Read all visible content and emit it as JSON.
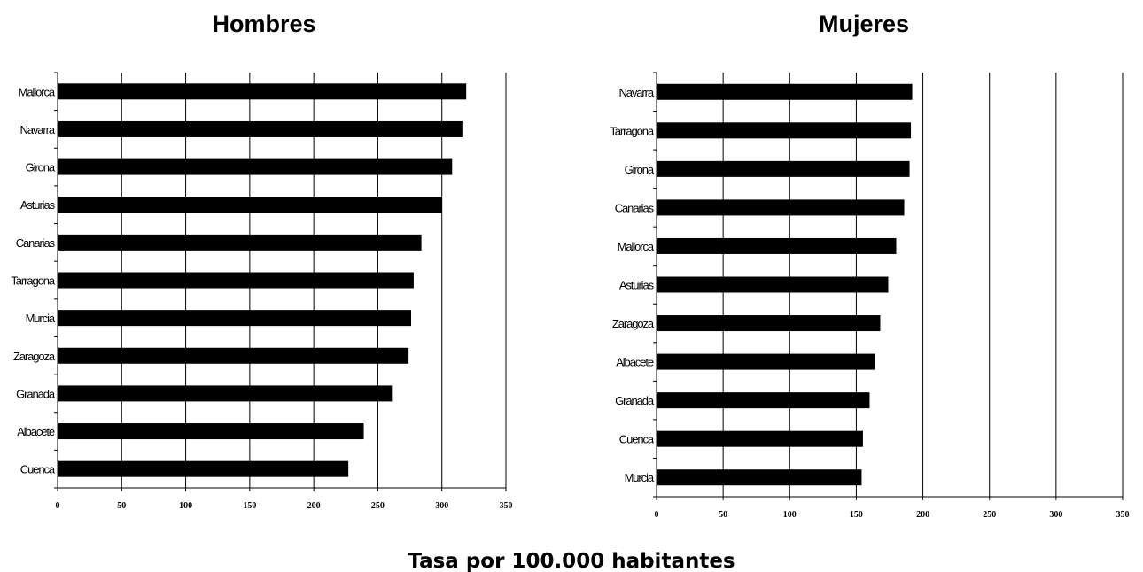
{
  "chart_data": [
    {
      "type": "bar",
      "orientation": "horizontal",
      "title": "Hombres",
      "categories": [
        "Mallorca",
        "Navarra",
        "Girona",
        "Asturias",
        "Canarias",
        "Tarragona",
        "Murcia",
        "Zaragoza",
        "Granada",
        "Albacete",
        "Cuenca"
      ],
      "values": [
        319,
        316,
        308,
        300,
        284,
        278,
        276,
        274,
        261,
        239,
        227
      ],
      "xlim": [
        0,
        350
      ],
      "xticks": [
        "0",
        "50",
        "100",
        "150",
        "200",
        "250",
        "300",
        "350"
      ],
      "grid": "vertical",
      "bar_color": "#000000"
    },
    {
      "type": "bar",
      "orientation": "horizontal",
      "title": "Mujeres",
      "categories": [
        "Navarra",
        "Tarragona",
        "Girona",
        "Canarias",
        "Mallorca",
        "Asturias",
        "Zaragoza",
        "Albacete",
        "Granada",
        "Cuenca",
        "Murcia"
      ],
      "values": [
        192,
        191,
        190,
        186,
        180,
        174,
        168,
        164,
        160,
        155,
        154
      ],
      "xlim": [
        0,
        350
      ],
      "xticks": [
        "0",
        "50",
        "100",
        "150",
        "200",
        "250",
        "300",
        "350"
      ],
      "grid": "vertical",
      "bar_color": "#000000"
    }
  ],
  "shared_xlabel": "Tasa por 100.000 habitantes"
}
